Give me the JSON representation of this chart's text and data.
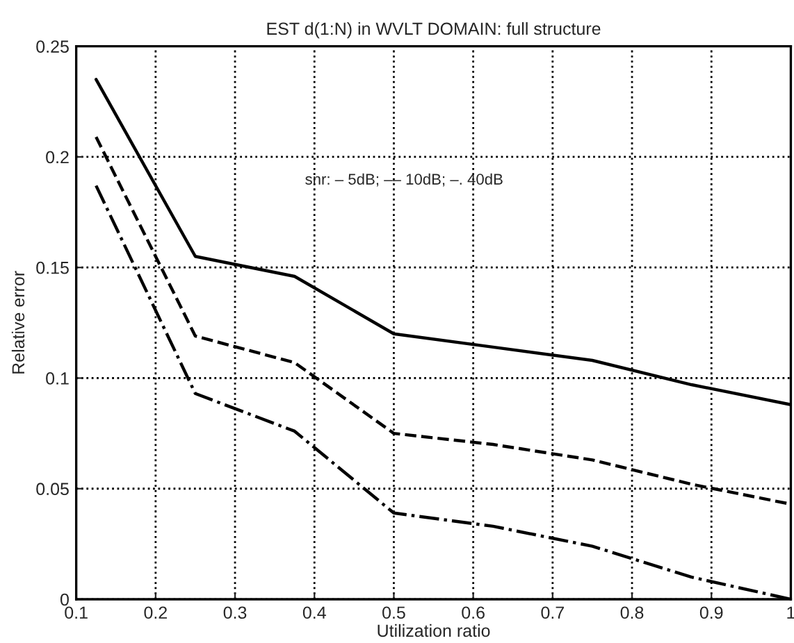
{
  "chart_data": {
    "type": "line",
    "title": "EST d(1:N) in WVLT DOMAIN: full structure",
    "xlabel": "Utilization ratio",
    "ylabel": "Relative error",
    "x": [
      0.125,
      0.25,
      0.375,
      0.5,
      0.625,
      0.75,
      0.875,
      1
    ],
    "series": [
      {
        "color": "#000000",
        "line_style": "solid",
        "values": [
          0.235,
          0.155,
          0.146,
          0.12,
          0.114,
          0.108,
          0.097,
          0.088
        ]
      },
      {
        "color": "#000000",
        "line_style": "dashed",
        "values": [
          0.209,
          0.119,
          0.107,
          0.075,
          0.07,
          0.063,
          0.052,
          0.043
        ]
      },
      {
        "color": "#000000",
        "line_style": "dashdot",
        "values": [
          0.187,
          0.093,
          0.076,
          0.039,
          0.033,
          0.024,
          0.01,
          0.0
        ]
      }
    ],
    "annotations": [
      "snr: – 5dB; –– 10dB; –. 40dB"
    ],
    "xlim": [
      0.1,
      1
    ],
    "ylim": [
      0,
      0.25
    ],
    "xticks": [
      0.1,
      0.2,
      0.3,
      0.4,
      0.5,
      0.6,
      0.7,
      0.8,
      0.9,
      1
    ],
    "yticks": [
      0,
      0.05,
      0.1,
      0.15,
      0.2,
      0.25
    ],
    "grid": true,
    "legend": false
  }
}
